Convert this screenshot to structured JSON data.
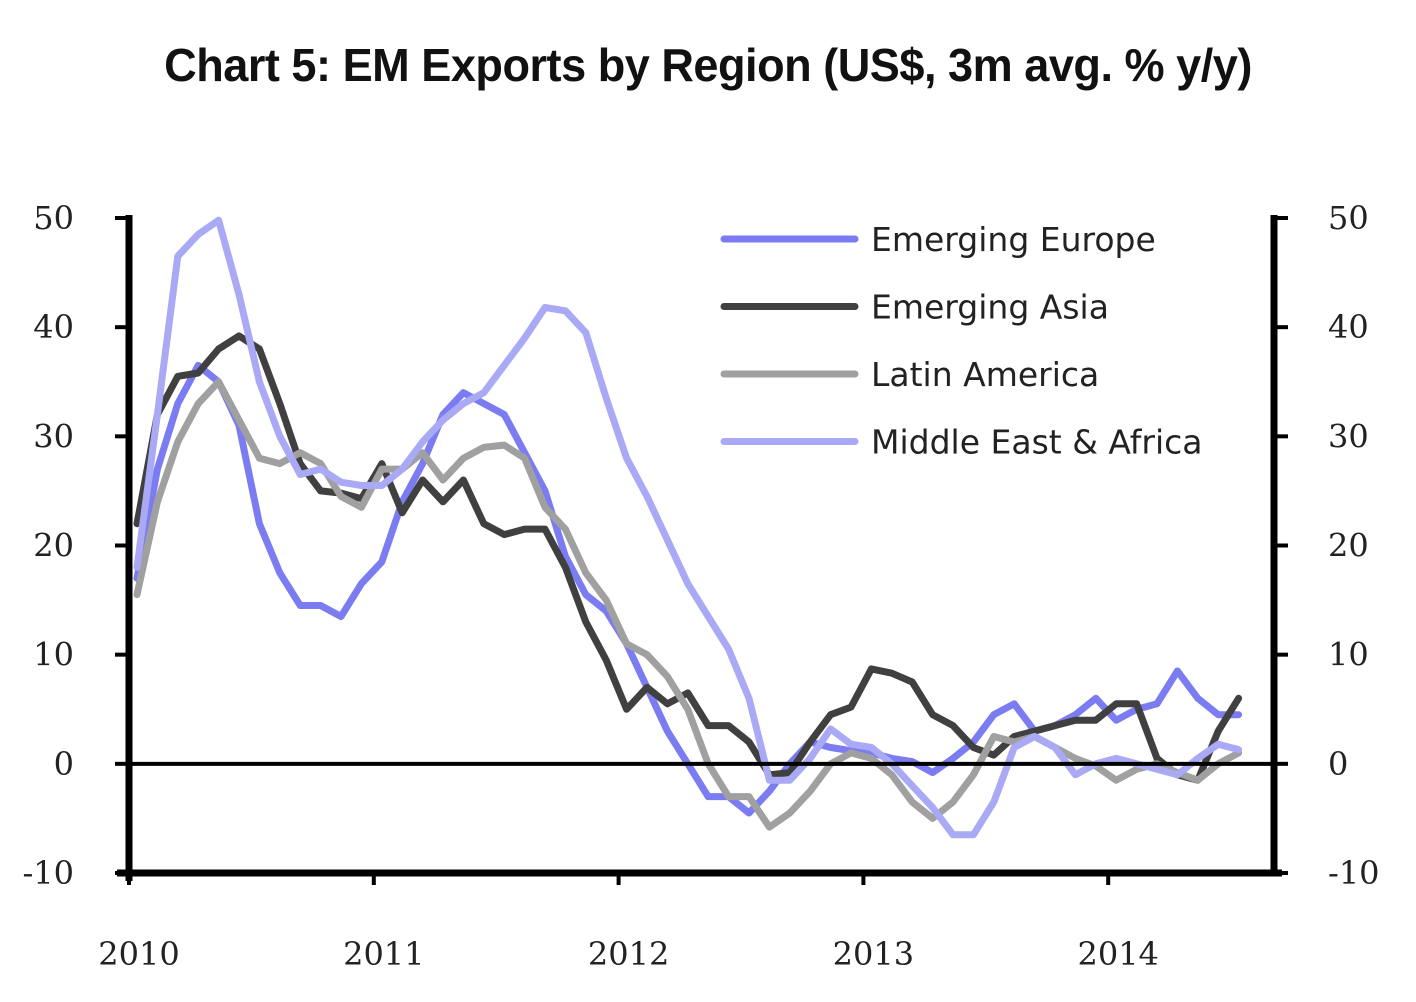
{
  "chart_data": {
    "type": "line",
    "title": "Chart 5: EM Exports by Region (US$, 3m avg. % y/y)",
    "xlabel": "",
    "ylabel": "",
    "ylabel_right": "",
    "x_start": "2010-01",
    "x_frequency": "monthly",
    "x_ticks": [
      "2010",
      "2011",
      "2012",
      "2013",
      "2014"
    ],
    "y_ticks": [
      50,
      40,
      30,
      20,
      10,
      0,
      -10
    ],
    "y_ticks_right": [
      50,
      40,
      30,
      20,
      10,
      0,
      -10
    ],
    "ylim": [
      -10,
      50
    ],
    "grid": false,
    "zero_line": true,
    "legend_position": "top-right",
    "series": [
      {
        "name": "Emerging Europe",
        "color": "#7b7bf2",
        "values": [
          17,
          27,
          33,
          36.5,
          35,
          31,
          22,
          17.5,
          14.5,
          14.5,
          13.5,
          16.5,
          18.5,
          24,
          27.5,
          32,
          34,
          33,
          32,
          28.5,
          25,
          19,
          15.5,
          14,
          11,
          7,
          3,
          0,
          -3,
          -3,
          -4.5,
          -2.5,
          0,
          2,
          1.5,
          1.2,
          1,
          0.5,
          0.2,
          -0.8,
          0.5,
          2,
          4.5,
          5.5,
          3,
          3.5,
          4.5,
          6,
          4,
          5,
          5.5,
          8.5,
          6,
          4.5,
          4.5
        ]
      },
      {
        "name": "Emerging Asia",
        "color": "#404040",
        "values": [
          22,
          32,
          35.5,
          35.8,
          38,
          39.2,
          38,
          33,
          27.5,
          25,
          24.8,
          24.3,
          27.5,
          23,
          26,
          24,
          26,
          22,
          21,
          21.5,
          21.5,
          18,
          13,
          9.5,
          5,
          7,
          5.5,
          6.5,
          3.5,
          3.5,
          2,
          -1,
          -0.8,
          2,
          4.5,
          5.2,
          8.7,
          8.3,
          7.5,
          4.5,
          3.5,
          1.5,
          0.8,
          2.5,
          3,
          3.5,
          4,
          4,
          5.5,
          5.5,
          0.5,
          -1,
          -1.5,
          3,
          6
        ]
      },
      {
        "name": "Latin America",
        "color": "#a0a0a0",
        "values": [
          15.5,
          24,
          29.5,
          33,
          35,
          31.5,
          28,
          27.5,
          28.5,
          27.5,
          24.5,
          23.5,
          27,
          27,
          28.5,
          26,
          28,
          29,
          29.2,
          28,
          23.5,
          21.5,
          17.5,
          15,
          11,
          10,
          8,
          5,
          0,
          -3,
          -3,
          -5.8,
          -4.5,
          -2.5,
          0,
          1,
          0.5,
          -1,
          -3.5,
          -5,
          -3.5,
          -1,
          2.5,
          2,
          2.5,
          1.5,
          0.5,
          -0.2,
          -1.5,
          -0.5,
          0,
          -0.8,
          -1.5,
          0,
          1
        ]
      },
      {
        "name": "Middle East & Africa",
        "color": "#a9a9f5",
        "values": [
          18,
          32,
          46.5,
          48.5,
          49.8,
          43,
          35,
          30,
          26.5,
          27,
          25.8,
          25.5,
          25.5,
          27,
          29.5,
          31.5,
          33,
          34,
          36.5,
          39,
          41.8,
          41.5,
          39.5,
          33.5,
          28,
          24.5,
          20.5,
          16.5,
          13.5,
          10.5,
          6,
          -1.5,
          -1.5,
          0.5,
          3.2,
          1.8,
          1.5,
          0,
          -2,
          -4,
          -6.5,
          -6.5,
          -3.5,
          1.5,
          2.5,
          1.5,
          -1,
          0,
          0.5,
          0,
          -0.5,
          -1,
          0.5,
          1.8,
          1.3
        ]
      }
    ]
  }
}
